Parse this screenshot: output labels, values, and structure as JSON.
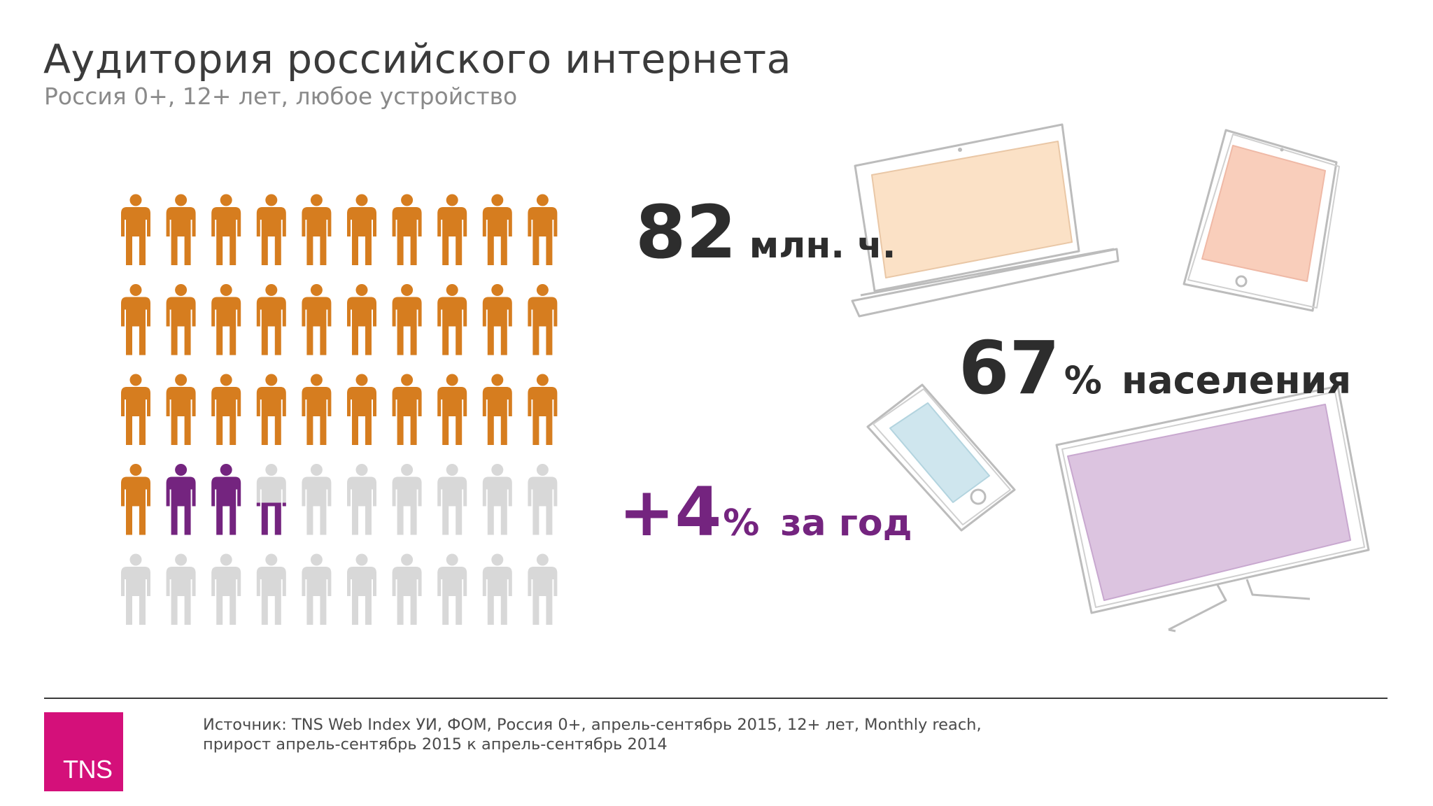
{
  "title": "Аудитория российского интернета",
  "subtitle": "Россия 0+, 12+ лет, любое устройство",
  "stats": {
    "audience": {
      "value": "82",
      "unit": "млн. ч."
    },
    "population": {
      "value": "67",
      "unit": "%",
      "label": "населения"
    },
    "growth": {
      "value": "+4",
      "unit": "%",
      "label": "за год"
    }
  },
  "chart_data": {
    "type": "pictogram",
    "total_icons": 50,
    "columns": 10,
    "rows": 5,
    "series": [
      {
        "name": "reach_prior_year",
        "value": 63
      },
      {
        "name": "growth",
        "value": 4
      }
    ],
    "total_percent": 67
  },
  "colors": {
    "base": "#d67d1f",
    "growth": "#74247f",
    "empty": "#d8d8d8",
    "brand": "#d4107a",
    "laptop_screen": "#fbe1c6",
    "tablet_screen": "#f9cebb",
    "phone_screen": "#cfe6ee",
    "tv_screen": "#dcc4e0"
  },
  "source": {
    "line1": "Источник: TNS Web Index УИ, ФОМ, Россия 0+, апрель-сентябрь 2015, 12+ лет, Monthly reach,",
    "line2": "прирост апрель-сентябрь 2015 к апрель-сентябрь 2014"
  },
  "logo": {
    "text": "TNS"
  }
}
